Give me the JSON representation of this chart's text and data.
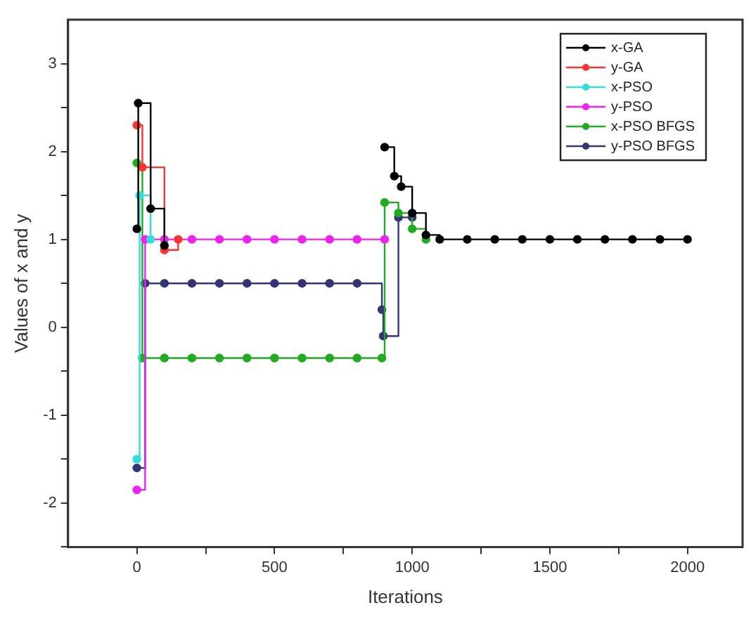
{
  "chart_data": {
    "type": "step",
    "xlabel": "Iterations",
    "ylabel": "Values of x and y",
    "xlim": [
      -250,
      2200
    ],
    "xticks": [
      0,
      {
        "value": 250,
        "label": null
      },
      500,
      {
        "value": 750,
        "label": null
      },
      1000,
      {
        "value": 1250,
        "label": null
      },
      1500,
      {
        "value": 1750,
        "label": null
      },
      2000
    ],
    "ylim": [
      -2.5,
      3.5
    ],
    "yticks": [
      {
        "value": -2.5,
        "label": null
      },
      -2,
      {
        "value": -1.5,
        "label": null
      },
      -1,
      {
        "value": -0.5,
        "label": null
      },
      0,
      {
        "value": 0.5,
        "label": null
      },
      1,
      {
        "value": 1.5,
        "label": null
      },
      2,
      {
        "value": 2.5,
        "label": null
      },
      3
    ],
    "grid": false,
    "legend": "top right",
    "marker": "circle",
    "line_style": "solid",
    "series": [
      {
        "name": "x-GA",
        "color": "#000000",
        "x": [
          0,
          5,
          50,
          100,
          150,
          900,
          935,
          960,
          1000,
          1050,
          1100,
          1200,
          1300,
          1400,
          1500,
          1600,
          1700,
          1800,
          1900,
          2000
        ],
        "values": [
          1.12,
          2.55,
          1.35,
          0.93,
          null,
          2.05,
          1.72,
          1.6,
          1.3,
          1.05,
          1.0,
          1.0,
          1.0,
          1.0,
          1.0,
          1.0,
          1.0,
          1.0,
          1.0,
          1.0
        ]
      },
      {
        "name": "y-GA",
        "color": "#ff3333",
        "x": [
          0,
          20,
          100,
          150
        ],
        "values": [
          2.3,
          1.82,
          0.88,
          1.0
        ]
      },
      {
        "name": "x-PSO",
        "color": "#33dddd",
        "x": [
          0,
          10,
          50
        ],
        "values": [
          -1.5,
          1.5,
          1.0
        ]
      },
      {
        "name": "y-PSO",
        "color": "#ee22ee",
        "x": [
          0,
          30,
          100,
          200,
          300,
          400,
          500,
          600,
          700,
          800,
          900
        ],
        "values": [
          -1.85,
          1.0,
          1.0,
          1.0,
          1.0,
          1.0,
          1.0,
          1.0,
          1.0,
          1.0,
          1.0
        ]
      },
      {
        "name": "x-PSO BFGS",
        "color": "#22aa22",
        "x": [
          0,
          20,
          100,
          200,
          300,
          400,
          500,
          600,
          700,
          800,
          890,
          900,
          950,
          1000,
          1050
        ],
        "values": [
          1.87,
          -0.35,
          -0.35,
          -0.35,
          -0.35,
          -0.35,
          -0.35,
          -0.35,
          -0.35,
          -0.35,
          -0.35,
          1.42,
          1.3,
          1.12,
          1.0
        ]
      },
      {
        "name": "y-PSO BFGS",
        "color": "#333377",
        "x": [
          0,
          30,
          100,
          200,
          300,
          400,
          500,
          600,
          700,
          800,
          890,
          895,
          950,
          1000
        ],
        "values": [
          -1.6,
          0.5,
          0.5,
          0.5,
          0.5,
          0.5,
          0.5,
          0.5,
          0.5,
          0.5,
          0.2,
          -0.1,
          1.25,
          1.25
        ]
      }
    ]
  }
}
